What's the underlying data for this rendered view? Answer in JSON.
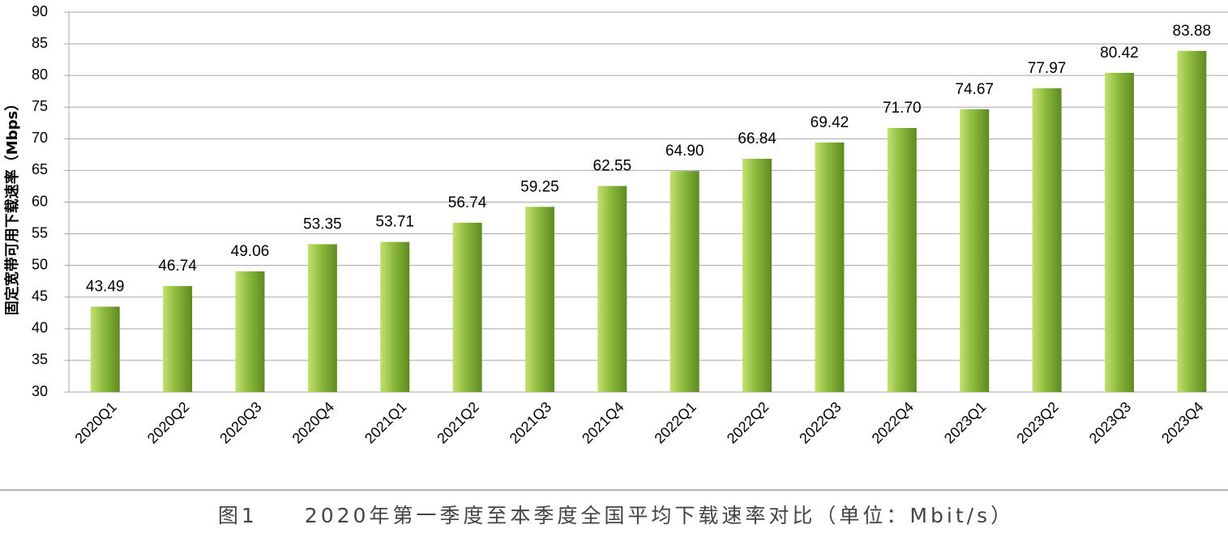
{
  "chart_data": {
    "type": "bar",
    "y_label": "固定宽带可用下载速率（Mbps）",
    "caption": "图1　　2020年第一季度至本季度全国平均下载速率对比（单位：Mbit/s）",
    "categories": [
      "2020Q1",
      "2020Q2",
      "2020Q3",
      "2020Q4",
      "2021Q1",
      "2021Q2",
      "2021Q3",
      "2021Q4",
      "2022Q1",
      "2022Q2",
      "2022Q3",
      "2022Q4",
      "2023Q1",
      "2023Q2",
      "2023Q3",
      "2023Q4"
    ],
    "values": [
      43.49,
      46.74,
      49.06,
      53.35,
      53.71,
      56.74,
      59.25,
      62.55,
      64.9,
      66.84,
      69.42,
      71.7,
      74.67,
      77.97,
      80.42,
      83.88
    ],
    "value_labels": [
      "43.49",
      "46.74",
      "49.06",
      "53.35",
      "53.71",
      "56.74",
      "59.25",
      "62.55",
      "64.90",
      "66.84",
      "69.42",
      "71.70",
      "74.67",
      "77.97",
      "80.42",
      "83.88"
    ],
    "color": "#8cba3c",
    "ylim": [
      30,
      90
    ],
    "yticks": [
      30,
      35,
      40,
      45,
      50,
      55,
      60,
      65,
      70,
      75,
      80,
      85,
      90
    ],
    "grid": true
  }
}
